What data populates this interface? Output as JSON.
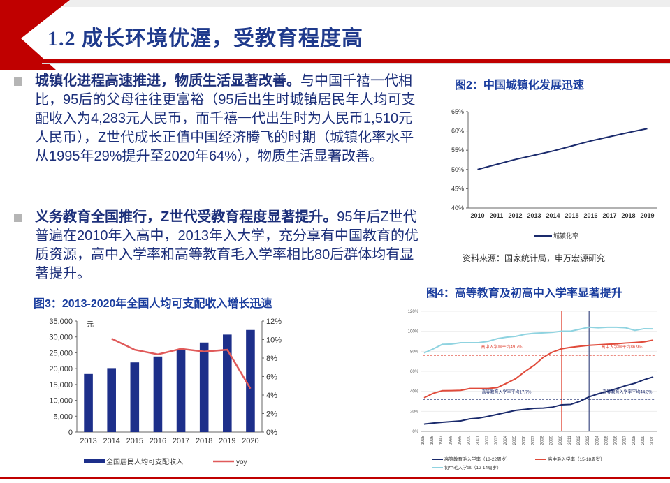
{
  "title": "1.2 成长环境优渥，受教育程度高",
  "paragraphs": [
    {
      "bold": "城镇化进程高速推进，物质生活显著改善。",
      "text": "与中国千禧一代相比，95后的父母往往更富裕（95后出生时城镇居民年人均可支配收入为4,283元人民币，而千禧一代出生时为人民币1,510元人民币），Z世代成长正值中国经济腾飞的时期（城镇化率水平从1995年29%提升至2020年64%），物质生活显著改善。"
    },
    {
      "bold": "义务教育全国推行，Z世代受教育程度显著提升。",
      "text": "95年后Z世代普遍在2010年入高中，2013年入大学，充分享有中国教育的优质资源，高中入学率和高等教育毛入学率相比80后群体均有显著提升。"
    }
  ],
  "figures": {
    "fig2_title": "图2：中国城镇化发展迅速",
    "fig3_title": "图3：2013-2020年全国人均可支配收入增长迅速",
    "fig4_title": "图4：高等教育及初高中入学率显著提升",
    "source": "资料来源：国家统计局，申万宏源研究"
  },
  "colors": {
    "banner_red": "#c00000",
    "navy": "#1f3a8c",
    "bar_blue": "#1d2f8a",
    "yoy_red": "#e05a5a",
    "line_navy": "#1a2a6c",
    "teal": "#8fd3e0",
    "orange_red": "#e04a3a"
  },
  "chart_data": [
    {
      "type": "line",
      "title": "图2：中国城镇化发展迅速",
      "x": [
        "2010",
        "2011",
        "2012",
        "2013",
        "2014",
        "2015",
        "2016",
        "2017",
        "2018",
        "2019"
      ],
      "series": [
        {
          "name": "城镇化率",
          "values": [
            50.0,
            51.3,
            52.6,
            53.7,
            54.8,
            56.1,
            57.4,
            58.5,
            59.6,
            60.6
          ]
        }
      ],
      "yticks": [
        "40%",
        "45%",
        "50%",
        "55%",
        "60%",
        "65%"
      ],
      "ylim": [
        40,
        65
      ]
    },
    {
      "type": "bar",
      "title": "图3：2013-2020年全国人均可支配收入增长迅速",
      "categories": [
        "2013",
        "2014",
        "2015",
        "2016",
        "2017",
        "2018",
        "2019",
        "2020"
      ],
      "unit_left": "元",
      "left_ticks": [
        "0",
        "5,000",
        "10,000",
        "15,000",
        "20,000",
        "25,000",
        "30,000",
        "35,000"
      ],
      "right_ticks": [
        "0%",
        "2%",
        "4%",
        "6%",
        "8%",
        "10%",
        "12%"
      ],
      "ylim_left": [
        0,
        35000
      ],
      "ylim_right": [
        0,
        12
      ],
      "series": [
        {
          "name": "全国居民人均可支配收入",
          "type": "bar",
          "values": [
            18311,
            20167,
            21966,
            23821,
            25974,
            28228,
            30733,
            32189
          ]
        },
        {
          "name": "yoy",
          "type": "line",
          "values": [
            null,
            10.1,
            8.9,
            8.4,
            9.0,
            8.7,
            8.9,
            4.7
          ]
        }
      ]
    },
    {
      "type": "line",
      "title": "图4：高等教育及初高中入学率显著提升",
      "x": [
        "1995",
        "1996",
        "1997",
        "1998",
        "1999",
        "2000",
        "2001",
        "2002",
        "2003",
        "2004",
        "2005",
        "2006",
        "2007",
        "2008",
        "2009",
        "2010",
        "2011",
        "2012",
        "2013",
        "2014",
        "2015",
        "2016",
        "2017",
        "2018",
        "2019",
        "2020"
      ],
      "yticks": [
        "0%",
        "20%",
        "40%",
        "60%",
        "80%",
        "100%",
        "120%"
      ],
      "ylim": [
        0,
        120
      ],
      "series": [
        {
          "name": "高等教育毛入学率（18-22周岁）",
          "values": [
            7.2,
            8.3,
            9.1,
            9.8,
            10.5,
            12.5,
            13.3,
            15.0,
            17.0,
            19.0,
            21.0,
            22.0,
            23.0,
            23.3,
            24.2,
            26.5,
            26.9,
            30.0,
            34.5,
            37.5,
            40.0,
            42.7,
            45.7,
            48.1,
            51.6,
            54.4
          ]
        },
        {
          "name": "高中毛入学率（15-18周岁）",
          "values": [
            33.6,
            38.0,
            40.6,
            40.7,
            41.0,
            42.8,
            42.8,
            42.8,
            43.8,
            48.1,
            52.7,
            59.8,
            66.0,
            74.0,
            79.2,
            82.5,
            84.0,
            85.0,
            86.0,
            86.5,
            87.0,
            87.5,
            88.3,
            88.8,
            89.5,
            91.2
          ]
        },
        {
          "name": "初中毛入学率（12-14周岁）",
          "values": [
            78.4,
            82.4,
            87.0,
            87.3,
            88.6,
            88.6,
            88.7,
            90.0,
            92.7,
            94.1,
            95.0,
            97.0,
            98.0,
            98.5,
            99.0,
            100.1,
            100.1,
            102.1,
            104.1,
            103.5,
            104.0,
            104.0,
            103.5,
            100.9,
            102.6,
            102.5
          ]
        }
      ],
      "annotations": [
        "高中入学率平均49.7%",
        "高中入学率平均86.9%",
        "高等教育入学率平均17.7%",
        "高等教育入学率平均44.3%"
      ],
      "legend": [
        "高等教育毛入学率（18-22周岁）",
        "高中毛入学率（15-18周岁）",
        "初中毛入学率（12-14周岁）"
      ]
    }
  ]
}
